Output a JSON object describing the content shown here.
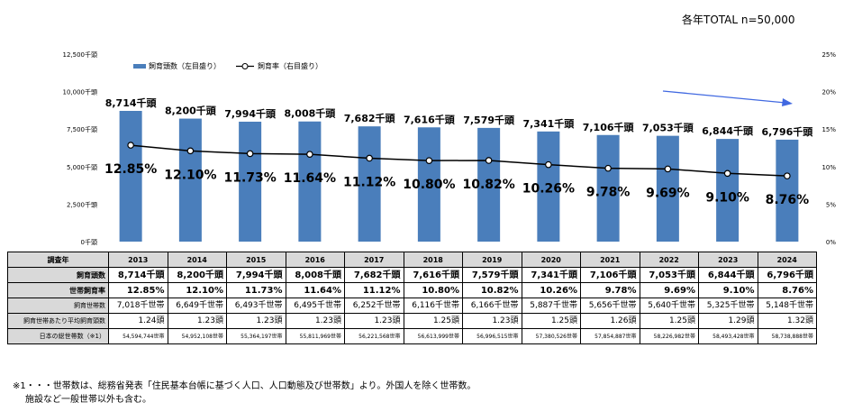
{
  "total_note": "各年TOTAL n=50,000",
  "chart_data": {
    "type": "bar+line",
    "categories": [
      "2013",
      "2014",
      "2015",
      "2016",
      "2017",
      "2018",
      "2019",
      "2020",
      "2021",
      "2022",
      "2023",
      "2024"
    ],
    "series": [
      {
        "name": "飼育頭数（左目盛り）",
        "type": "bar",
        "axis": "left",
        "color": "#4a7ebb",
        "values": [
          8714,
          8200,
          7994,
          8008,
          7682,
          7616,
          7579,
          7341,
          7106,
          7053,
          6844,
          6796
        ],
        "labels": [
          "8,714千頭",
          "8,200千頭",
          "7,994千頭",
          "8,008千頭",
          "7,682千頭",
          "7,616千頭",
          "7,579千頭",
          "7,341千頭",
          "7,106千頭",
          "7,053千頭",
          "6,844千頭",
          "6,796千頭"
        ]
      },
      {
        "name": "飼育率（右目盛り）",
        "type": "line",
        "axis": "right",
        "color": "#000000",
        "values": [
          12.85,
          12.1,
          11.73,
          11.64,
          11.12,
          10.8,
          10.82,
          10.26,
          9.78,
          9.69,
          9.1,
          8.76
        ],
        "labels": [
          "12.85%",
          "12.10%",
          "11.73%",
          "11.64%",
          "11.12%",
          "10.80%",
          "10.82%",
          "10.26%",
          "9.78%",
          "9.69%",
          "9.10%",
          "8.76%"
        ]
      }
    ],
    "left_axis": {
      "min": 0,
      "max": 12500,
      "ticks": [
        0,
        2500,
        5000,
        7500,
        10000,
        12500
      ],
      "tick_labels": [
        "0千頭",
        "2,500千頭",
        "5,000千頭",
        "7,500千頭",
        "10,000千頭",
        "12,500千頭"
      ]
    },
    "right_axis": {
      "min": 0,
      "max": 25,
      "ticks": [
        0,
        5,
        10,
        15,
        20,
        25
      ],
      "tick_labels": [
        "0%",
        "5%",
        "10%",
        "15%",
        "20%",
        "25%"
      ]
    },
    "legend_position": "top-left",
    "trend_arrow": "down-right",
    "trend_arrow_color": "#4169e1"
  },
  "table": {
    "header_label": "調査年",
    "rows": [
      {
        "label": "飼育頭数",
        "style": "bold",
        "cells": [
          "8,714千頭",
          "8,200千頭",
          "7,994千頭",
          "8,008千頭",
          "7,682千頭",
          "7,616千頭",
          "7,579千頭",
          "7,341千頭",
          "7,106千頭",
          "7,053千頭",
          "6,844千頭",
          "6,796千頭"
        ]
      },
      {
        "label": "世帯飼育率",
        "style": "bold",
        "cells": [
          "12.85%",
          "12.10%",
          "11.73%",
          "11.64%",
          "11.12%",
          "10.80%",
          "10.82%",
          "10.26%",
          "9.78%",
          "9.69%",
          "9.10%",
          "8.76%"
        ]
      },
      {
        "label": "飼育世帯数",
        "style": "normal",
        "cells": [
          "7,018千世帯",
          "6,649千世帯",
          "6,493千世帯",
          "6,495千世帯",
          "6,252千世帯",
          "6,116千世帯",
          "6,166千世帯",
          "5,887千世帯",
          "5,656千世帯",
          "5,640千世帯",
          "5,325千世帯",
          "5,148千世帯"
        ]
      },
      {
        "label": "飼育世帯あたり平均飼育頭数",
        "style": "normal",
        "cells": [
          "1.24頭",
          "1.23頭",
          "1.23頭",
          "1.23頭",
          "1.23頭",
          "1.25頭",
          "1.23頭",
          "1.25頭",
          "1.26頭",
          "1.25頭",
          "1.29頭",
          "1.32頭"
        ]
      },
      {
        "label": "日本の総世帯数（※1）",
        "style": "small",
        "cells": [
          "54,594,744世帯",
          "54,952,108世帯",
          "55,364,197世帯",
          "55,811,969世帯",
          "56,221,568世帯",
          "56,613,999世帯",
          "56,996,515世帯",
          "57,380,526世帯",
          "57,854,887世帯",
          "58,226,982世帯",
          "58,493,428世帯",
          "58,738,888世帯"
        ]
      }
    ]
  },
  "footnote": {
    "line1": "※1・・・世帯数は、総務省発表「住民基本台帳に基づく人口、人口動態及び世帯数」より。外国人を除く世帯数。",
    "line2": "施設など一般世帯以外も含む。"
  }
}
